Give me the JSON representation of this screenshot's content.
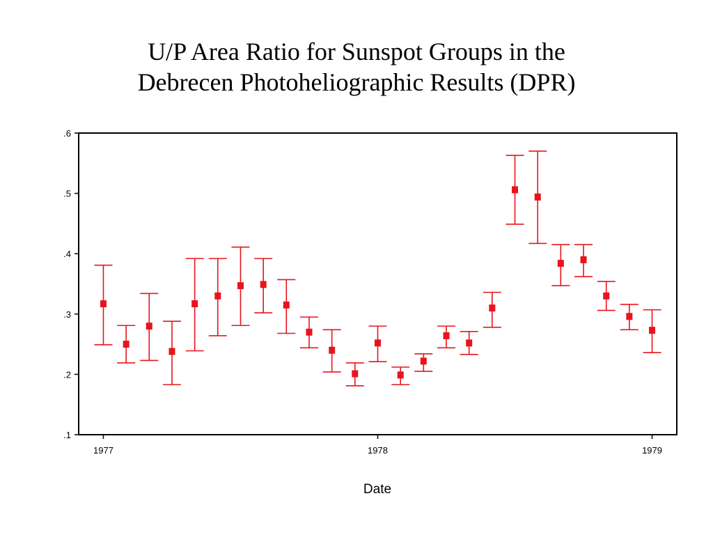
{
  "chart_data": {
    "type": "scatter",
    "title_line1": "U/P Area Ratio for Sunspot Groups in the",
    "title_line2": "Debrecen Photoheliographic Results (DPR)",
    "xlabel": "Date",
    "ylabel": "",
    "xlim": [
      1976.91,
      1979.09
    ],
    "ylim": [
      0.1,
      0.6
    ],
    "x_ticks": [
      1977,
      1978,
      1979
    ],
    "x_tick_labels": [
      "1977",
      "1978",
      "1979"
    ],
    "y_ticks": [
      0.1,
      0.2,
      0.3,
      0.4,
      0.5,
      0.6
    ],
    "y_tick_labels": [
      ".1",
      ".2",
      ".3",
      ".4",
      ".5",
      ".6"
    ],
    "grid": false,
    "marker_color": "#e8141c",
    "series": [
      {
        "x": [
          1977.0,
          1977.083,
          1977.167,
          1977.25,
          1977.333,
          1977.417,
          1977.5,
          1977.583,
          1977.667,
          1977.75,
          1977.833,
          1977.917,
          1978.0,
          1978.083,
          1978.167,
          1978.25,
          1978.333,
          1978.417,
          1978.5,
          1978.583,
          1978.667,
          1978.75,
          1978.833,
          1978.917,
          1979.0
        ],
        "y": [
          0.317,
          0.25,
          0.28,
          0.238,
          0.317,
          0.33,
          0.347,
          0.349,
          0.315,
          0.27,
          0.24,
          0.201,
          0.252,
          0.199,
          0.222,
          0.264,
          0.252,
          0.31,
          0.506,
          0.494,
          0.384,
          0.39,
          0.33,
          0.296,
          0.273
        ],
        "y_low": [
          0.249,
          0.219,
          0.223,
          0.183,
          0.239,
          0.264,
          0.281,
          0.302,
          0.268,
          0.244,
          0.204,
          0.181,
          0.221,
          0.183,
          0.205,
          0.244,
          0.233,
          0.278,
          0.449,
          0.417,
          0.347,
          0.362,
          0.306,
          0.274,
          0.236
        ],
        "y_high": [
          0.381,
          0.281,
          0.334,
          0.288,
          0.392,
          0.392,
          0.411,
          0.392,
          0.357,
          0.295,
          0.274,
          0.219,
          0.28,
          0.212,
          0.234,
          0.28,
          0.271,
          0.336,
          0.563,
          0.57,
          0.415,
          0.415,
          0.354,
          0.316,
          0.307
        ]
      }
    ]
  }
}
